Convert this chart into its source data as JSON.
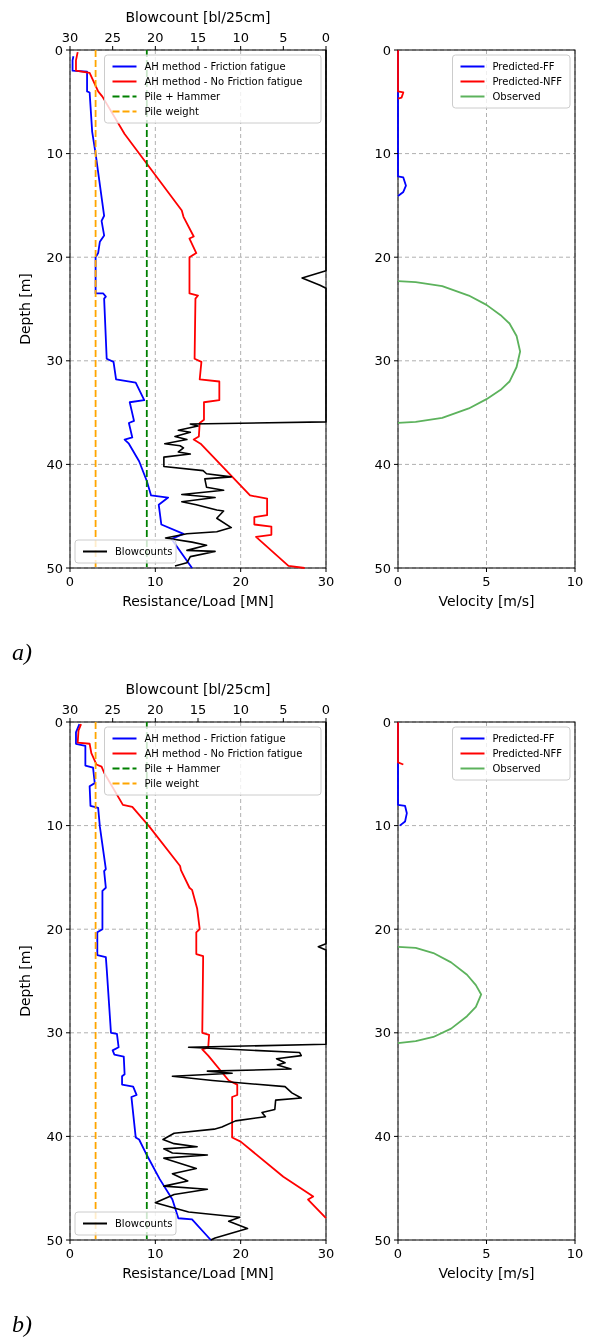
{
  "chart_data": [
    {
      "type": "line",
      "xlabel": "Resistance/Load [MN]",
      "ylabel": "Depth [m]",
      "x2label": "Blowcount [bl/25cm]",
      "xlim": [
        0,
        30
      ],
      "xticks": [
        0,
        10,
        20,
        30
      ],
      "x2lim": [
        30,
        0
      ],
      "x2ticks": [
        30,
        25,
        20,
        15,
        10,
        5,
        0
      ],
      "ylim": [
        50,
        0
      ],
      "yticks": [
        0,
        10,
        20,
        30,
        40,
        50
      ],
      "grid": true,
      "legend": "top right",
      "annotations": [
        "a)"
      ],
      "series": [
        {
          "name": "AH method - Friction fatigue",
          "color": "#0000ff",
          "x": [
            0.4,
            0.3,
            0.3,
            2.0,
            2.0,
            2.3,
            2.6,
            3.0,
            4.0,
            3.7,
            4.0,
            3.5,
            3.3,
            3.0,
            3.0,
            3.9,
            4.2,
            4.0,
            4.3,
            5.1,
            5.4,
            7.7,
            8.7,
            7.0,
            7.5,
            6.9,
            7.3,
            6.4,
            6.9,
            8.1,
            9.0,
            9.5,
            11.5,
            10.4,
            10.7,
            13.3,
            11.9,
            14.3
          ],
          "values": [
            0.6,
            1.0,
            2.0,
            2.1,
            4.0,
            4.1,
            7.9,
            10.0,
            16.0,
            16.5,
            17.9,
            18.5,
            19.6,
            20.0,
            23.5,
            23.5,
            23.8,
            24.0,
            29.8,
            30.1,
            31.8,
            32.1,
            33.8,
            34.0,
            35.8,
            36.0,
            37.4,
            37.6,
            38.0,
            39.7,
            41.6,
            43.0,
            43.2,
            43.9,
            45.8,
            46.7,
            47.2,
            50.0
          ]
        },
        {
          "name": "AH method - No Friction fatigue",
          "color": "#ff0000",
          "x": [
            0.9,
            0.7,
            0.7,
            2.3,
            3.3,
            3.8,
            6.4,
            13.1,
            13.3,
            14.5,
            14.0,
            14.8,
            14.0,
            14.0,
            15.0,
            14.7,
            14.6,
            15.4,
            15.2,
            17.5,
            17.5,
            15.7,
            15.7,
            15.2,
            15.1,
            14.5,
            15.3,
            21.1,
            23.1,
            23.1,
            21.6,
            21.6,
            23.6,
            23.6,
            21.8,
            25.6,
            27.5
          ],
          "values": [
            0.2,
            1.0,
            2.0,
            2.2,
            4.0,
            4.5,
            8.1,
            15.5,
            16.1,
            18.0,
            18.2,
            19.6,
            20.0,
            23.5,
            23.7,
            24.0,
            29.8,
            30.1,
            31.8,
            32.0,
            33.8,
            34.0,
            35.7,
            36.0,
            37.3,
            37.6,
            38.0,
            43.0,
            43.3,
            44.9,
            45.1,
            45.8,
            46.0,
            46.8,
            47.0,
            49.8,
            50.0
          ]
        },
        {
          "name": "Pile + Hammer",
          "color": "#008000",
          "line_style": "dashed",
          "x": [
            9,
            9
          ],
          "values": [
            0,
            50
          ]
        },
        {
          "name": "Pile weight",
          "color": "#ffa500",
          "line_style": "dashed",
          "x": [
            3,
            3
          ],
          "values": [
            0,
            50
          ]
        },
        {
          "name": "Blowcounts",
          "color": "#000000",
          "axis": "x2",
          "x": [
            0,
            0,
            2.8,
            0.7,
            0,
            0,
            15.9,
            15.0,
            17.3,
            15.9,
            17.7,
            16.3,
            18.9,
            17.1,
            16.7,
            17.3,
            15.9,
            19.0,
            19.0,
            14.4,
            14.0,
            11.1,
            14.2,
            14.0,
            12.0,
            16.9,
            13.0,
            16.9,
            15.2,
            12.8,
            12.0,
            12.8,
            11.1,
            12.8,
            16.3,
            18.8,
            15.7,
            14.0,
            16.3,
            13.0,
            15.9,
            16.3,
            17.7
          ],
          "values": [
            0,
            21.3,
            22.0,
            22.7,
            23.0,
            35.9,
            36.1,
            36.3,
            36.7,
            36.9,
            37.3,
            37.6,
            38.0,
            38.2,
            38.4,
            38.8,
            39.0,
            39.3,
            40.2,
            40.6,
            40.9,
            41.2,
            41.4,
            42.2,
            42.5,
            42.9,
            43.2,
            43.6,
            43.9,
            44.4,
            44.5,
            45.2,
            46.1,
            46.5,
            46.7,
            47.1,
            47.5,
            47.8,
            48.3,
            48.4,
            48.9,
            49.5,
            49.8
          ]
        }
      ]
    },
    {
      "type": "line",
      "xlabel": "Velocity [m/s]",
      "xlim": [
        0,
        10
      ],
      "xticks": [
        0,
        5,
        10
      ],
      "ylim": [
        50,
        0
      ],
      "yticks": [
        0,
        10,
        20,
        30,
        40,
        50
      ],
      "grid": true,
      "legend": "top right",
      "series": [
        {
          "name": "Predicted-FF",
          "color": "#0000ff",
          "x": [
            0,
            0,
            0.3,
            0.45,
            0.3,
            0
          ],
          "values": [
            0,
            12.2,
            12.3,
            13.1,
            13.7,
            14.1
          ]
        },
        {
          "name": "Predicted-NFF",
          "color": "#ff0000",
          "x": [
            0,
            0,
            0.3,
            0.2,
            0
          ],
          "values": [
            0,
            4.0,
            4.1,
            4.6,
            4.7
          ]
        },
        {
          "name": "Observed",
          "color": "#5cb25c",
          "x": [
            0,
            1.0,
            2.5,
            4.0,
            5.0,
            5.8,
            6.3,
            6.7,
            6.9,
            6.7,
            6.3,
            5.8,
            5.0,
            4.0,
            2.5,
            1.0,
            0
          ],
          "values": [
            22.3,
            22.4,
            22.8,
            23.7,
            24.6,
            25.6,
            26.4,
            27.6,
            29.1,
            30.6,
            32.0,
            32.8,
            33.7,
            34.6,
            35.5,
            35.9,
            36.0
          ]
        }
      ]
    },
    {
      "type": "line",
      "xlabel": "Resistance/Load [MN]",
      "ylabel": "Depth [m]",
      "x2label": "Blowcount [bl/25cm]",
      "xlim": [
        0,
        30
      ],
      "xticks": [
        0,
        10,
        20,
        30
      ],
      "x2lim": [
        30,
        0
      ],
      "x2ticks": [
        30,
        25,
        20,
        15,
        10,
        5,
        0
      ],
      "ylim": [
        50,
        0
      ],
      "yticks": [
        0,
        10,
        20,
        30,
        40,
        50
      ],
      "grid": true,
      "legend": "top right",
      "annotations": [
        "b)"
      ],
      "series": [
        {
          "name": "AH method - Friction fatigue",
          "color": "#0000ff",
          "x": [
            1.1,
            0.7,
            0.7,
            1.8,
            1.8,
            2.7,
            2.9,
            2.3,
            2.4,
            3.3,
            3.5,
            4.2,
            4.0,
            4.2,
            3.8,
            3.8,
            3.2,
            3.2,
            4.2,
            4.3,
            4.8,
            5.5,
            5.7,
            5.0,
            5.2,
            6.3,
            6.4,
            6.1,
            6.1,
            7.4,
            7.8,
            7.2,
            7.7,
            8.1,
            9.0,
            10.5,
            12.0,
            12.7,
            14.3,
            16.5
          ],
          "values": [
            0.2,
            1.0,
            2.1,
            2.3,
            4.2,
            4.4,
            5.9,
            6.2,
            8.1,
            8.3,
            10.1,
            14.2,
            14.4,
            16.0,
            16.3,
            20.0,
            20.3,
            22.5,
            22.7,
            23.8,
            30.0,
            30.1,
            31.4,
            31.7,
            32.1,
            32.3,
            34.0,
            34.2,
            35.0,
            35.2,
            36.0,
            36.2,
            40.1,
            40.3,
            41.8,
            44.1,
            46.1,
            47.9,
            48.0,
            50.0
          ]
        },
        {
          "name": "AH method - No Friction fatigue",
          "color": "#ff0000",
          "x": [
            1.3,
            1.0,
            0.9,
            2.3,
            2.5,
            3.1,
            3.7,
            4.0,
            6.2,
            7.3,
            9.3,
            12.9,
            13.0,
            14.0,
            14.3,
            14.9,
            15.2,
            14.8,
            14.8,
            15.6,
            15.6,
            15.5,
            16.3,
            16.2,
            15.5,
            16.2,
            18.6,
            19.6,
            19.6,
            19.0,
            19.0,
            20.0,
            25.0,
            28.5,
            27.9,
            30.0
          ],
          "values": [
            0.2,
            0.8,
            2.0,
            2.1,
            3.0,
            4.1,
            4.3,
            4.9,
            8.0,
            8.2,
            10.1,
            13.9,
            14.3,
            16.0,
            16.2,
            18.0,
            20.0,
            20.3,
            22.4,
            22.6,
            23.0,
            30.0,
            30.2,
            31.4,
            31.6,
            32.2,
            34.6,
            35.0,
            36.0,
            36.2,
            40.1,
            40.5,
            43.9,
            45.8,
            46.1,
            47.9
          ]
        },
        {
          "name": "Pile + Hammer",
          "color": "#008000",
          "line_style": "dashed",
          "x": [
            9,
            9
          ],
          "values": [
            0,
            50
          ]
        },
        {
          "name": "Pile weight",
          "color": "#ffa500",
          "line_style": "dashed",
          "x": [
            3,
            3
          ],
          "values": [
            0,
            50
          ]
        },
        {
          "name": "Blowcounts",
          "color": "#000000",
          "axis": "x2",
          "x": [
            0,
            0,
            0.9,
            0,
            0,
            16.1,
            3.1,
            2.9,
            5.8,
            4.8,
            5.7,
            4.1,
            13.9,
            11.0,
            18.0,
            13.3,
            4.8,
            4.0,
            2.9,
            5.9,
            6.0,
            7.5,
            7.1,
            10.6,
            12.2,
            13.1,
            17.8,
            19.1,
            17.8,
            15.1,
            19.0,
            18.0,
            13.9,
            19.0,
            15.2,
            18.0,
            16.2,
            19.0,
            13.9,
            17.8,
            20.0,
            16.1,
            10.1,
            11.4,
            9.2,
            13.0,
            13.5
          ],
          "values": [
            0,
            21.4,
            21.7,
            22.0,
            31.1,
            31.4,
            31.9,
            32.2,
            32.5,
            32.9,
            33.1,
            33.5,
            33.7,
            33.9,
            34.2,
            34.6,
            35.2,
            35.8,
            36.3,
            36.5,
            37.4,
            37.7,
            38.1,
            38.5,
            39.1,
            39.3,
            39.7,
            40.3,
            40.7,
            41.0,
            41.2,
            41.6,
            41.8,
            42.1,
            43.1,
            43.6,
            44.3,
            44.8,
            45.1,
            45.6,
            46.4,
            47.3,
            47.8,
            48.2,
            48.9,
            49.8,
            50.0
          ]
        }
      ]
    },
    {
      "type": "line",
      "xlabel": "Velocity [m/s]",
      "xlim": [
        0,
        10
      ],
      "xticks": [
        0,
        5,
        10
      ],
      "ylim": [
        50,
        0
      ],
      "yticks": [
        0,
        10,
        20,
        30,
        40,
        50
      ],
      "grid": true,
      "legend": "top right",
      "series": [
        {
          "name": "Predicted-FF",
          "color": "#0000ff",
          "x": [
            0,
            0,
            0.4,
            0.5,
            0.4,
            0.1
          ],
          "values": [
            0,
            8.0,
            8.1,
            8.8,
            9.6,
            10.0
          ]
        },
        {
          "name": "Predicted-NFF",
          "color": "#ff0000",
          "x": [
            0,
            0,
            0.3
          ],
          "values": [
            0,
            3.9,
            4.1
          ]
        },
        {
          "name": "Observed",
          "color": "#5cb25c",
          "x": [
            0,
            1.0,
            2.0,
            3.0,
            3.9,
            4.4,
            4.7,
            4.4,
            3.9,
            3.0,
            2.0,
            1.0,
            0
          ],
          "values": [
            21.7,
            21.8,
            22.3,
            23.2,
            24.4,
            25.4,
            26.3,
            27.5,
            28.4,
            29.6,
            30.4,
            30.8,
            31.0
          ]
        }
      ]
    }
  ]
}
